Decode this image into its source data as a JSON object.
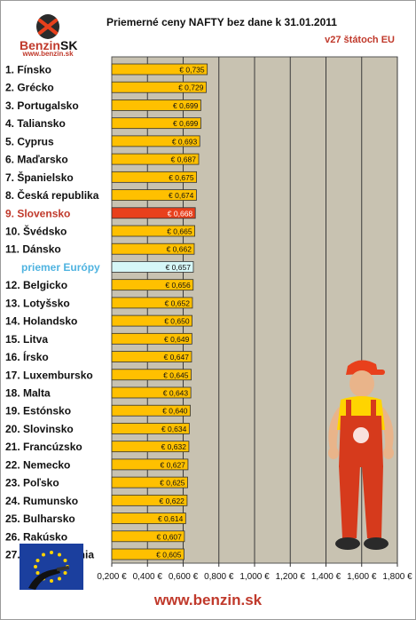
{
  "brand": {
    "logo_text": "Benzin",
    "logo_suffix": "SK",
    "logo_url": "www.benzin.sk",
    "footer_url": "www.benzin.sk"
  },
  "colors": {
    "bar": "#ffc000",
    "bar_highlight": "#e8401c",
    "bar_average": "#d6f7f7",
    "plot_background": "#c8c2b1",
    "label_highlight": "#c0392b",
    "label_average": "#4fb3e0"
  },
  "chart_data": {
    "type": "bar",
    "orientation": "horizontal",
    "title": "Priemerné ceny NAFTY bez dane k 31.01.2011",
    "subtitle": "v27 štátoch EU",
    "categories": [
      "1. Fínsko",
      "2. Grécko",
      "3. Portugalsko",
      "4. Taliansko",
      "5. Cyprus",
      "6. Maďarsko",
      "7. Španielsko",
      "8. Česká republika",
      "9. Slovensko",
      "10. Švédsko",
      "11. Dánsko",
      "priemer Európy",
      "12. Belgicko",
      "13. Lotyšsko",
      "14. Holandsko",
      "15. Litva",
      "16. Írsko",
      "17. Luxembursko",
      "18. Malta",
      "19. Estónsko",
      "20. Slovinsko",
      "21. Francúzsko",
      "22. Nemecko",
      "23. Poľsko",
      "24. Rumunsko",
      "25. Bulharsko",
      "26. Rakúsko",
      "27. Veľká Británia"
    ],
    "values": [
      0.735,
      0.729,
      0.699,
      0.699,
      0.693,
      0.687,
      0.675,
      0.674,
      0.668,
      0.665,
      0.662,
      0.657,
      0.656,
      0.652,
      0.65,
      0.649,
      0.647,
      0.645,
      0.643,
      0.64,
      0.634,
      0.632,
      0.627,
      0.625,
      0.622,
      0.614,
      0.607,
      0.605
    ],
    "value_labels": [
      "€ 0,735",
      "€ 0,729",
      "€ 0,699",
      "€ 0,699",
      "€ 0,693",
      "€ 0,687",
      "€ 0,675",
      "€ 0,674",
      "€ 0,668",
      "€ 0,665",
      "€ 0,662",
      "€ 0,657",
      "€ 0,656",
      "€ 0,652",
      "€ 0,650",
      "€ 0,649",
      "€ 0,647",
      "€ 0,645",
      "€ 0,643",
      "€ 0,640",
      "€ 0,634",
      "€ 0,632",
      "€ 0,627",
      "€ 0,625",
      "€ 0,622",
      "€ 0,614",
      "€ 0,607",
      "€ 0,605"
    ],
    "highlight_index": 8,
    "average_index": 11,
    "x_ticks": [
      0.2,
      0.4,
      0.6,
      0.8,
      1.0,
      1.2,
      1.4,
      1.6,
      1.8
    ],
    "x_tick_labels": [
      "0,200 €",
      "0,400 €",
      "0,600 €",
      "0,800 €",
      "1,000 €",
      "1,200 €",
      "1,400 €",
      "1,600 €",
      "1,800 €"
    ],
    "xlim": [
      0.2,
      1.8
    ],
    "grid": "vertical",
    "legend": "none"
  }
}
